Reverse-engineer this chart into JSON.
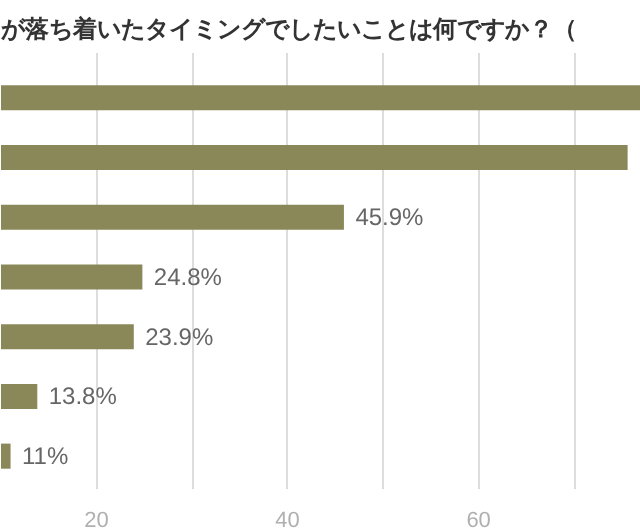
{
  "chart_data": {
    "type": "bar",
    "orientation": "horizontal",
    "title": "が落ち着いたタイミングでしたいことは何ですか？（",
    "categories": [
      null,
      null,
      null,
      null,
      null,
      null,
      null
    ],
    "values": [
      77,
      75.6,
      45.9,
      24.8,
      23.9,
      13.8,
      11
    ],
    "value_labels": [
      null,
      null,
      "45.9%",
      "24.8%",
      "23.9%",
      "13.8%",
      "11%"
    ],
    "color": "#8a8758",
    "xlim": [
      10,
      77
    ],
    "xticks": [
      20,
      {
        "value": 30,
        "label": null
      },
      40,
      {
        "value": 50,
        "label": null
      },
      60,
      {
        "value": 70,
        "label": null
      }
    ],
    "grid": "x"
  }
}
